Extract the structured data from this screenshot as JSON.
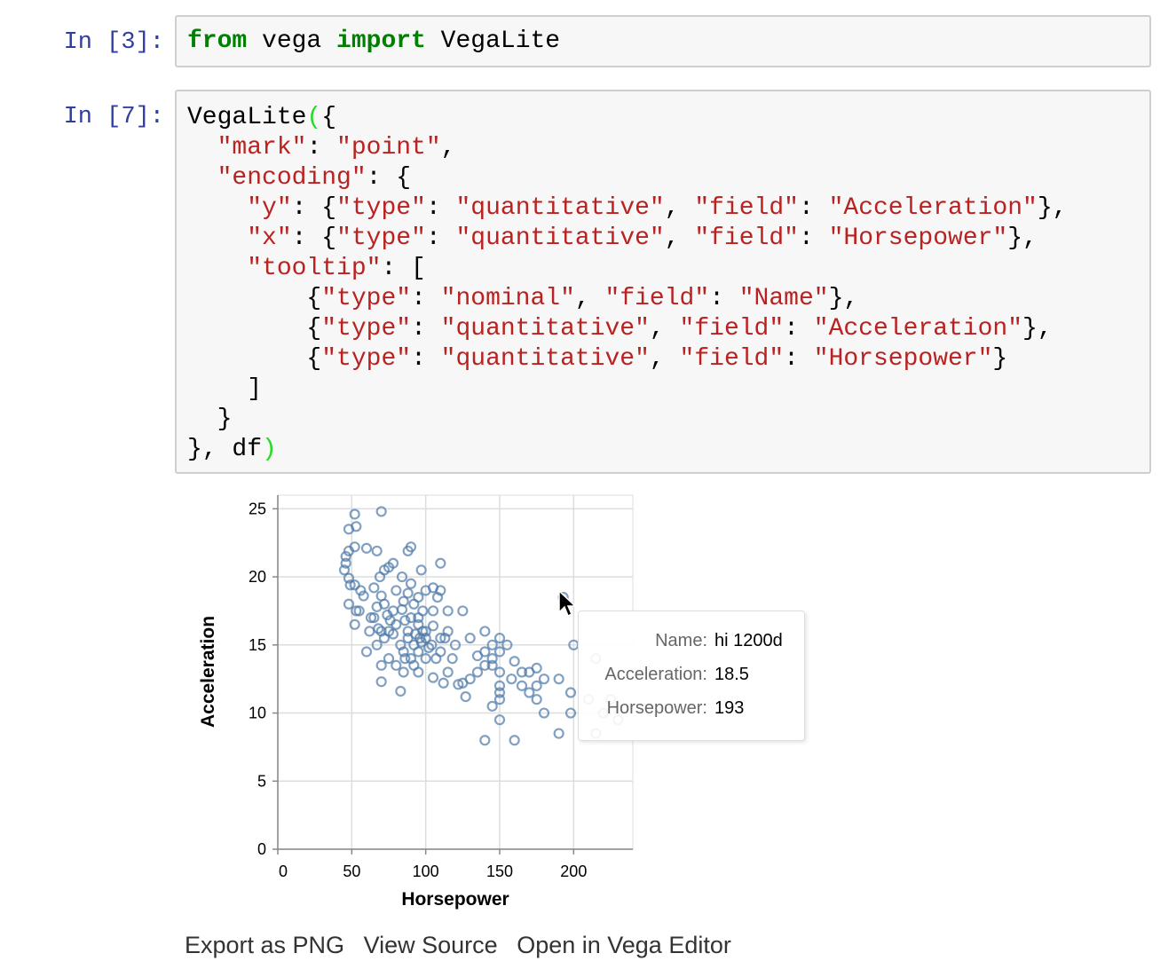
{
  "cells": [
    {
      "prompt": "In [3]:",
      "lines": [
        [
          [
            "kw",
            "from"
          ],
          [
            "p",
            " vega "
          ],
          [
            "kw",
            "import"
          ],
          [
            "p",
            " VegaLite"
          ]
        ]
      ]
    },
    {
      "prompt": "In [7]:",
      "lines": [
        [
          [
            "p",
            "VegaLite"
          ],
          [
            "br",
            "("
          ],
          [
            "p",
            "{"
          ]
        ],
        [
          [
            "p",
            "  "
          ],
          [
            "str",
            "\"mark\""
          ],
          [
            "p",
            ": "
          ],
          [
            "str",
            "\"point\""
          ],
          [
            "p",
            ","
          ]
        ],
        [
          [
            "p",
            "  "
          ],
          [
            "str",
            "\"encoding\""
          ],
          [
            "p",
            ": {"
          ]
        ],
        [
          [
            "p",
            "    "
          ],
          [
            "str",
            "\"y\""
          ],
          [
            "p",
            ": {"
          ],
          [
            "str",
            "\"type\""
          ],
          [
            "p",
            ": "
          ],
          [
            "str",
            "\"quantitative\""
          ],
          [
            "p",
            ", "
          ],
          [
            "str",
            "\"field\""
          ],
          [
            "p",
            ": "
          ],
          [
            "str",
            "\"Acceleration\""
          ],
          [
            "p",
            "},"
          ]
        ],
        [
          [
            "p",
            "    "
          ],
          [
            "str",
            "\"x\""
          ],
          [
            "p",
            ": {"
          ],
          [
            "str",
            "\"type\""
          ],
          [
            "p",
            ": "
          ],
          [
            "str",
            "\"quantitative\""
          ],
          [
            "p",
            ", "
          ],
          [
            "str",
            "\"field\""
          ],
          [
            "p",
            ": "
          ],
          [
            "str",
            "\"Horsepower\""
          ],
          [
            "p",
            "},"
          ]
        ],
        [
          [
            "p",
            "    "
          ],
          [
            "str",
            "\"tooltip\""
          ],
          [
            "p",
            ": ["
          ]
        ],
        [
          [
            "p",
            "        {"
          ],
          [
            "str",
            "\"type\""
          ],
          [
            "p",
            ": "
          ],
          [
            "str",
            "\"nominal\""
          ],
          [
            "p",
            ", "
          ],
          [
            "str",
            "\"field\""
          ],
          [
            "p",
            ": "
          ],
          [
            "str",
            "\"Name\""
          ],
          [
            "p",
            "},"
          ]
        ],
        [
          [
            "p",
            "        {"
          ],
          [
            "str",
            "\"type\""
          ],
          [
            "p",
            ": "
          ],
          [
            "str",
            "\"quantitative\""
          ],
          [
            "p",
            ", "
          ],
          [
            "str",
            "\"field\""
          ],
          [
            "p",
            ": "
          ],
          [
            "str",
            "\"Acceleration\""
          ],
          [
            "p",
            "},"
          ]
        ],
        [
          [
            "p",
            "        {"
          ],
          [
            "str",
            "\"type\""
          ],
          [
            "p",
            ": "
          ],
          [
            "str",
            "\"quantitative\""
          ],
          [
            "p",
            ", "
          ],
          [
            "str",
            "\"field\""
          ],
          [
            "p",
            ": "
          ],
          [
            "str",
            "\"Horsepower\""
          ],
          [
            "p",
            "}"
          ]
        ],
        [
          [
            "p",
            "    ]"
          ]
        ],
        [
          [
            "p",
            "  }"
          ]
        ],
        [
          [
            "p",
            "}, df"
          ],
          [
            "br",
            ")"
          ]
        ]
      ]
    }
  ],
  "chart_data": {
    "type": "scatter",
    "xlabel": "Horsepower",
    "ylabel": "Acceleration",
    "xlim": [
      0,
      240
    ],
    "ylim": [
      0,
      26
    ],
    "xticks": [
      "0",
      "50",
      "100",
      "150",
      "200"
    ],
    "yticks": [
      "0",
      "5",
      "10",
      "15",
      "20",
      "25"
    ],
    "grid": true,
    "color": "#4c78a8",
    "points": [
      [
        52,
        24.6
      ],
      [
        70,
        24.8
      ],
      [
        48,
        23.5
      ],
      [
        53,
        23.7
      ],
      [
        52,
        22.2
      ],
      [
        60,
        22.1
      ],
      [
        46,
        21.5
      ],
      [
        48,
        21.9
      ],
      [
        46,
        21.0
      ],
      [
        45,
        20.5
      ],
      [
        48,
        19.9
      ],
      [
        49,
        19.4
      ],
      [
        52,
        19.4
      ],
      [
        67,
        21.9
      ],
      [
        90,
        22.2
      ],
      [
        88,
        21.9
      ],
      [
        110,
        21.0
      ],
      [
        78,
        21.0
      ],
      [
        72,
        20.5
      ],
      [
        84,
        20.0
      ],
      [
        97,
        20.5
      ],
      [
        75,
        20.7
      ],
      [
        69,
        20.0
      ],
      [
        56,
        19.0
      ],
      [
        58,
        18.6
      ],
      [
        53,
        17.5
      ],
      [
        55,
        17.5
      ],
      [
        52,
        16.5
      ],
      [
        65,
        19.2
      ],
      [
        70,
        18.6
      ],
      [
        85,
        18.2
      ],
      [
        95,
        18.5
      ],
      [
        100,
        19.0
      ],
      [
        105,
        19.2
      ],
      [
        110,
        19.0
      ],
      [
        108,
        18.5
      ],
      [
        115,
        17.5
      ],
      [
        125,
        17.5
      ],
      [
        95,
        17.0
      ],
      [
        98,
        16.0
      ],
      [
        80,
        16.5
      ],
      [
        75,
        16.0
      ],
      [
        68,
        16.2
      ],
      [
        62,
        16.0
      ],
      [
        88,
        15.5
      ],
      [
        92,
        15.0
      ],
      [
        105,
        16.4
      ],
      [
        100,
        15.5
      ],
      [
        110,
        15.5
      ],
      [
        120,
        15.0
      ],
      [
        130,
        15.5
      ],
      [
        140,
        16.0
      ],
      [
        145,
        15.0
      ],
      [
        150,
        15.5
      ],
      [
        150,
        14.5
      ],
      [
        155,
        15.0
      ],
      [
        160,
        13.8
      ],
      [
        150,
        13.0
      ],
      [
        150,
        12.0
      ],
      [
        150,
        11.5
      ],
      [
        150,
        11.0
      ],
      [
        145,
        13.5
      ],
      [
        140,
        14.5
      ],
      [
        135,
        13.0
      ],
      [
        130,
        12.5
      ],
      [
        125,
        12.2
      ],
      [
        115,
        13.0
      ],
      [
        110,
        14.5
      ],
      [
        100,
        14.0
      ],
      [
        95,
        14.5
      ],
      [
        90,
        14.0
      ],
      [
        85,
        14.5
      ],
      [
        80,
        13.5
      ],
      [
        75,
        14.0
      ],
      [
        70,
        13.5
      ],
      [
        70,
        12.3
      ],
      [
        85,
        13.0
      ],
      [
        83,
        11.6
      ],
      [
        95,
        13.0
      ],
      [
        105,
        12.6
      ],
      [
        112,
        12.2
      ],
      [
        122,
        12.1
      ],
      [
        127,
        11.2
      ],
      [
        140,
        13.5
      ],
      [
        145,
        10.5
      ],
      [
        150,
        9.5
      ],
      [
        140,
        8.0
      ],
      [
        160,
        8.0
      ],
      [
        165,
        12.0
      ],
      [
        170,
        11.5
      ],
      [
        175,
        12.0
      ],
      [
        180,
        12.5
      ],
      [
        175,
        11.0
      ],
      [
        180,
        10.0
      ],
      [
        190,
        12.5
      ],
      [
        190,
        8.5
      ],
      [
        198,
        11.5
      ],
      [
        198,
        10.0
      ],
      [
        200,
        15.0
      ],
      [
        215,
        14.0
      ],
      [
        225,
        11.0
      ],
      [
        220,
        10.0
      ],
      [
        230,
        9.5
      ],
      [
        215,
        8.5
      ],
      [
        210,
        11.0
      ],
      [
        193,
        18.5
      ],
      [
        165,
        13.0
      ],
      [
        170,
        13.0
      ],
      [
        158,
        12.5
      ],
      [
        175,
        13.3
      ],
      [
        145,
        14.0
      ],
      [
        135,
        14.2
      ],
      [
        115,
        16.0
      ],
      [
        105,
        17.5
      ],
      [
        90,
        17.0
      ],
      [
        78,
        17.5
      ],
      [
        65,
        17.0
      ],
      [
        60,
        14.5
      ],
      [
        72,
        15.5
      ],
      [
        88,
        16.0
      ],
      [
        95,
        16.5
      ],
      [
        100,
        16.0
      ],
      [
        93,
        15.8
      ],
      [
        83,
        15.0
      ],
      [
        78,
        15.8
      ],
      [
        67,
        15.0
      ],
      [
        63,
        17.0
      ],
      [
        72,
        18.0
      ],
      [
        80,
        19.0
      ],
      [
        88,
        18.8
      ],
      [
        67,
        17.8
      ],
      [
        76,
        16.8
      ],
      [
        86,
        16.8
      ],
      [
        97,
        15.2
      ],
      [
        102,
        14.8
      ],
      [
        107,
        14.0
      ],
      [
        118,
        14.0
      ],
      [
        113,
        15.5
      ],
      [
        48,
        18.0
      ],
      [
        90,
        19.5
      ],
      [
        92,
        18.0
      ],
      [
        98,
        17.5
      ],
      [
        84,
        17.6
      ],
      [
        74,
        17.2
      ],
      [
        70,
        16.0
      ],
      [
        86,
        14.0
      ],
      [
        92,
        13.5
      ],
      [
        96,
        15.5
      ],
      [
        104,
        15.0
      ]
    ]
  },
  "tooltip": {
    "rows": [
      {
        "key": "Name:",
        "value": "hi 1200d"
      },
      {
        "key": "Acceleration:",
        "value": "18.5"
      },
      {
        "key": "Horsepower:",
        "value": "193"
      }
    ]
  },
  "links": [
    "Export as PNG",
    "View Source",
    "Open in Vega Editor"
  ]
}
